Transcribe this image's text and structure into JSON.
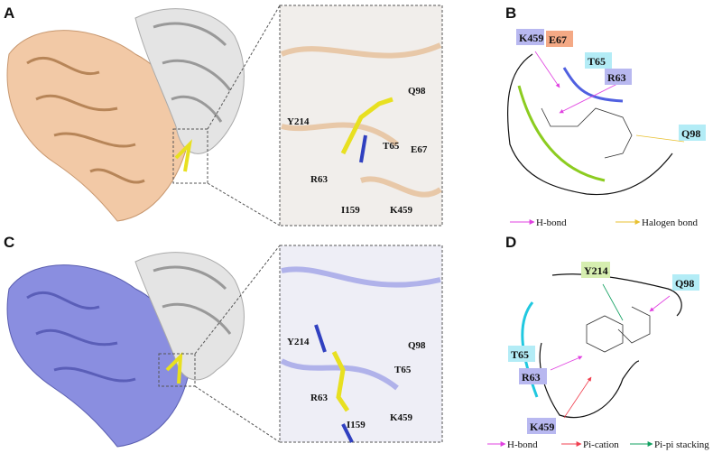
{
  "panels": {
    "A": {
      "label": "A",
      "inset_residues": [
        "Y214",
        "Q98",
        "T65",
        "E67",
        "R63",
        "I159",
        "K459"
      ]
    },
    "B": {
      "label": "B",
      "residues": [
        {
          "name": "K459",
          "color": "#b8b8f0"
        },
        {
          "name": "E67",
          "color": "#f4a985"
        },
        {
          "name": "T65",
          "color": "#b3ecf6"
        },
        {
          "name": "R63",
          "color": "#b8b8f0"
        },
        {
          "name": "Q98",
          "color": "#b3ecf6"
        }
      ],
      "legend": [
        {
          "label": "H-bond",
          "color": "#e040e0"
        },
        {
          "label": "Halogen bond",
          "color": "#e8c030"
        }
      ]
    },
    "C": {
      "label": "C",
      "inset_residues": [
        "Y214",
        "Q98",
        "T65",
        "R63",
        "I159",
        "K459"
      ]
    },
    "D": {
      "label": "D",
      "residues": [
        {
          "name": "Y214",
          "color": "#d6eeb0"
        },
        {
          "name": "Q98",
          "color": "#b3ecf6"
        },
        {
          "name": "T65",
          "color": "#b3ecf6"
        },
        {
          "name": "R63",
          "color": "#b8b8f0"
        },
        {
          "name": "K459",
          "color": "#b8b8f0"
        }
      ],
      "legend": [
        {
          "label": "H-bond",
          "color": "#e040e0"
        },
        {
          "label": "Pi-cation",
          "color": "#f04050"
        },
        {
          "label": "Pi-pi stacking",
          "color": "#10a060"
        }
      ]
    }
  },
  "colors": {
    "protein_A": "#f2c9a6",
    "protein_C": "#8a8ee0",
    "partner": "#d8d8d8",
    "ligand": "#e8e020"
  }
}
